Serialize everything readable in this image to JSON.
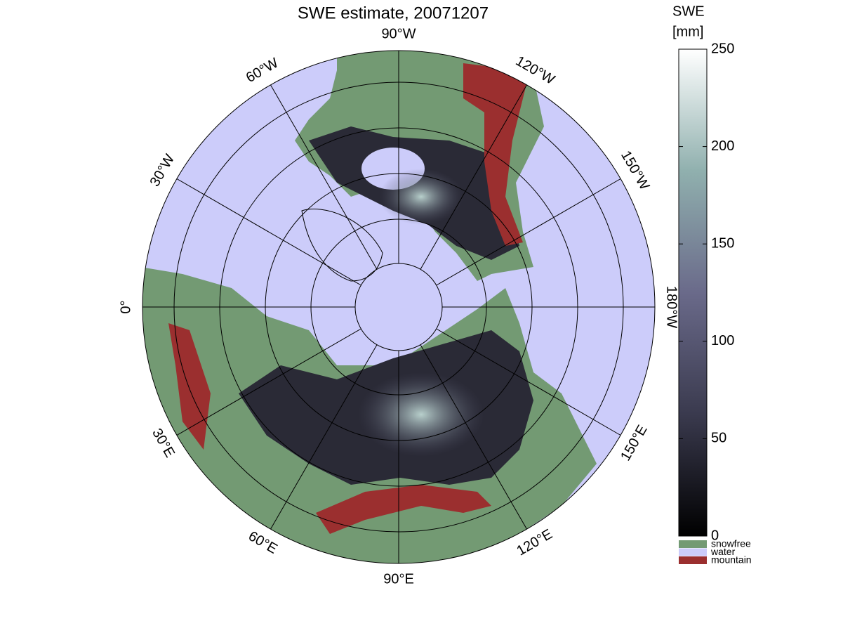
{
  "title": "SWE estimate, 20071207",
  "colorbar": {
    "title": [
      "SWE",
      "[mm]"
    ],
    "lim": [
      0,
      250
    ],
    "ticks": [
      0,
      50,
      100,
      150,
      200,
      250
    ]
  },
  "legend": [
    {
      "name": "snowfree",
      "color": "#739a73"
    },
    {
      "name": "water",
      "color": "#ccccfa"
    },
    {
      "name": "mountain",
      "color": "#9b2f2f"
    }
  ],
  "meridian_labels": [
    "0°",
    "30°E",
    "60°E",
    "90°E",
    "120°E",
    "150°E",
    "180°W",
    "150°W",
    "120°W",
    "90°W",
    "60°W",
    "30°W"
  ]
}
